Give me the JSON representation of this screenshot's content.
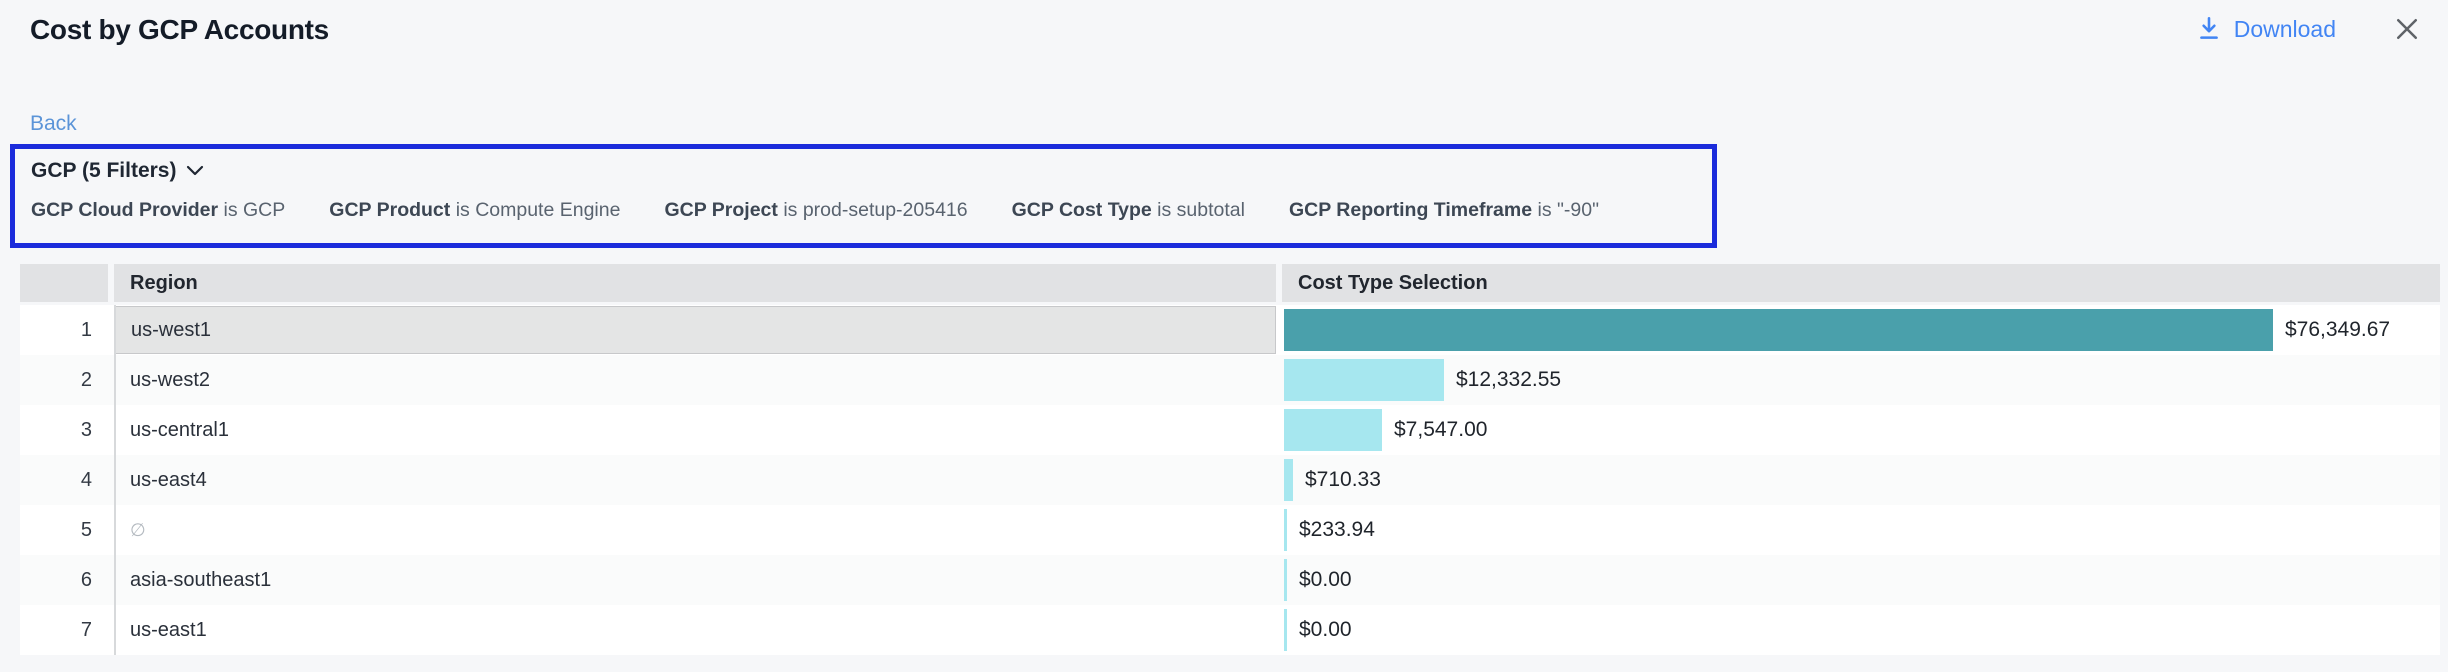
{
  "header": {
    "title": "Cost by GCP Accounts",
    "download_label": "Download"
  },
  "nav": {
    "back_label": "Back"
  },
  "filters": {
    "summary": "GCP (5 Filters)",
    "items": [
      {
        "name": "GCP Cloud Provider",
        "condition": "is GCP"
      },
      {
        "name": "GCP Product",
        "condition": "is Compute Engine"
      },
      {
        "name": "GCP Project",
        "condition": "is prod-setup-205416"
      },
      {
        "name": "GCP Cost Type",
        "condition": "is subtotal"
      },
      {
        "name": "GCP Reporting Timeframe",
        "condition": "is \"-90\""
      }
    ]
  },
  "table": {
    "columns": {
      "region": "Region",
      "cost": "Cost Type Selection"
    },
    "rows": [
      {
        "index": "1",
        "region": "us-west1",
        "is_null": false,
        "value": 76349.67,
        "label": "$76,349.67",
        "selected": true
      },
      {
        "index": "2",
        "region": "us-west2",
        "is_null": false,
        "value": 12332.55,
        "label": "$12,332.55",
        "selected": false
      },
      {
        "index": "3",
        "region": "us-central1",
        "is_null": false,
        "value": 7547.0,
        "label": "$7,547.00",
        "selected": false
      },
      {
        "index": "4",
        "region": "us-east4",
        "is_null": false,
        "value": 710.33,
        "label": "$710.33",
        "selected": false
      },
      {
        "index": "5",
        "region": "∅",
        "is_null": true,
        "value": 233.94,
        "label": "$233.94",
        "selected": false
      },
      {
        "index": "6",
        "region": "asia-southeast1",
        "is_null": false,
        "value": 0.0,
        "label": "$0.00",
        "selected": false
      },
      {
        "index": "7",
        "region": "us-east1",
        "is_null": false,
        "value": 0.0,
        "label": "$0.00",
        "selected": false
      }
    ],
    "max_value": 76349.67
  },
  "colors": {
    "accent_blue": "#4285f4",
    "back_link_blue": "#5b94d8",
    "filter_border_blue": "#1b2bdb",
    "bar_selected": "#4aa0ab",
    "bar_default": "#a6e7ef",
    "close_gray": "#5f6368"
  }
}
